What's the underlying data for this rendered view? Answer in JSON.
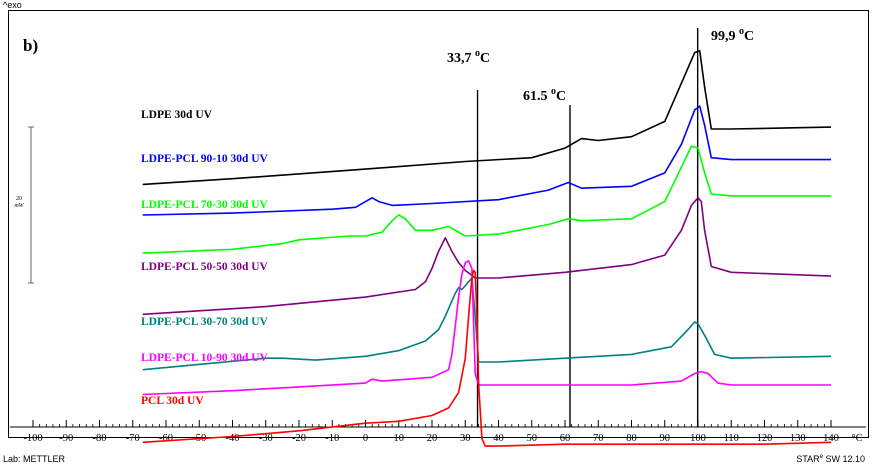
{
  "chart_data": {
    "type": "line",
    "panel_label": "b)",
    "exo_label": "^exo",
    "xlabel": "°C",
    "xlim": [
      -100,
      140
    ],
    "xticks": [
      -100,
      -90,
      -80,
      -70,
      -60,
      -50,
      -40,
      -30,
      -20,
      -10,
      0,
      10,
      20,
      30,
      40,
      50,
      60,
      70,
      80,
      90,
      100,
      110,
      120,
      130,
      140
    ],
    "scale_bar": {
      "value": "20",
      "unit": "mW"
    },
    "vlines": [
      {
        "x": 33.7,
        "label": "33,7 °C"
      },
      {
        "x": 61.5,
        "label": "61.5  °C"
      },
      {
        "x": 99.9,
        "label": "99,9 °C"
      }
    ],
    "series": [
      {
        "name": "LDPE 30d UV",
        "color": "#000000",
        "x": [
          -67,
          -40,
          0,
          30,
          50,
          60,
          65,
          70,
          80,
          90,
          95,
          99,
          100.5,
          102,
          104,
          110,
          140
        ],
        "y": [
          49,
          52,
          57,
          61,
          63,
          68,
          73,
          72,
          74,
          82,
          102,
          118,
          119,
          100,
          78,
          78,
          79
        ]
      },
      {
        "name": "LDPE-PCL 90-10 30d UV",
        "color": "#0000ff",
        "x": [
          -67,
          -40,
          -10,
          -3,
          0,
          2,
          4,
          8,
          20,
          40,
          55,
          61,
          65,
          80,
          90,
          95,
          99,
          100.5,
          102,
          104,
          110,
          140
        ],
        "y": [
          33,
          34,
          36,
          37,
          40,
          42,
          40,
          38,
          39,
          41,
          46,
          50,
          47,
          48,
          55,
          70,
          88,
          90,
          80,
          63,
          62,
          62
        ]
      },
      {
        "name": "LDPE-PCL 70-30 30d UV",
        "color": "#00ff00",
        "x": [
          -67,
          -40,
          -25,
          -20,
          -5,
          0,
          5,
          8,
          10,
          12,
          15,
          20,
          25,
          30,
          40,
          55,
          61,
          65,
          80,
          90,
          95,
          98,
          100,
          102,
          104,
          110,
          140
        ],
        "y": [
          13,
          15,
          18,
          20,
          22,
          22,
          24,
          30,
          33,
          31,
          25,
          25,
          27,
          22,
          23,
          28,
          31,
          30,
          31,
          40,
          58,
          69,
          68,
          55,
          44,
          43,
          43
        ]
      },
      {
        "name": "LDPE-PCL 50-50 30d UV",
        "color": "#800080",
        "x": [
          -67,
          -30,
          0,
          15,
          18,
          20,
          22,
          24,
          26,
          28,
          30,
          33,
          40,
          60,
          80,
          90,
          95,
          98,
          100,
          101,
          102,
          104,
          110,
          140
        ],
        "y": [
          -19,
          -15,
          -10,
          -6,
          -2,
          5,
          14,
          21,
          14,
          8,
          4,
          0,
          0,
          3,
          7,
          12,
          25,
          38,
          42,
          40,
          25,
          6,
          3,
          1
        ]
      },
      {
        "name": "LDPE-PCL 30-70 30d UV",
        "color": "#008080",
        "x": [
          -67,
          -30,
          -25,
          -15,
          0,
          10,
          18,
          22,
          24,
          26,
          27,
          28,
          29,
          30,
          31,
          32,
          33,
          34,
          40,
          60,
          80,
          92,
          97,
          99,
          100,
          102,
          105,
          110,
          140
        ],
        "y": [
          -48,
          -42,
          -42,
          -43,
          -41,
          -38,
          -33,
          -27,
          -20,
          -12,
          -8,
          -5,
          -6,
          -4,
          -2,
          0,
          -20,
          -44,
          -44,
          -42,
          -40,
          -36,
          -27,
          -23,
          -24,
          -30,
          -40,
          -42,
          -41
        ]
      },
      {
        "name": "LDPE-PCL 10-90 30d UV",
        "color": "#ff00ff",
        "x": [
          -67,
          -40,
          -20,
          0,
          2,
          5,
          20,
          25,
          26,
          27,
          28,
          29,
          30,
          31,
          32,
          33,
          34,
          40,
          60,
          80,
          95,
          99,
          101,
          103,
          106,
          110,
          140
        ],
        "y": [
          -61,
          -59,
          -57,
          -55,
          -53,
          -54,
          -52,
          -48,
          -40,
          -25,
          -10,
          2,
          8,
          9,
          5,
          -50,
          -56,
          -56,
          -56,
          -56,
          -54,
          -50,
          -49,
          -50,
          -55,
          -56,
          -56
        ]
      },
      {
        "name": "PCL 30d UV",
        "color": "#ff0000",
        "x": [
          -67,
          -40,
          -20,
          0,
          10,
          20,
          25,
          28,
          30,
          31,
          32,
          32.5,
          33,
          33.5,
          34,
          35,
          36,
          40,
          60,
          80,
          100,
          120,
          140
        ],
        "y": [
          -86,
          -83,
          -80,
          -76,
          -75,
          -72,
          -68,
          -60,
          -42,
          -20,
          0,
          4,
          3,
          -20,
          -55,
          -84,
          -88,
          -88,
          -87,
          -87,
          -87,
          -87,
          -86
        ]
      }
    ]
  },
  "footer": {
    "left": "Lab: METTLER",
    "right_brand": "STAR",
    "right_reg": "e",
    "right_version": " SW 12.10"
  }
}
